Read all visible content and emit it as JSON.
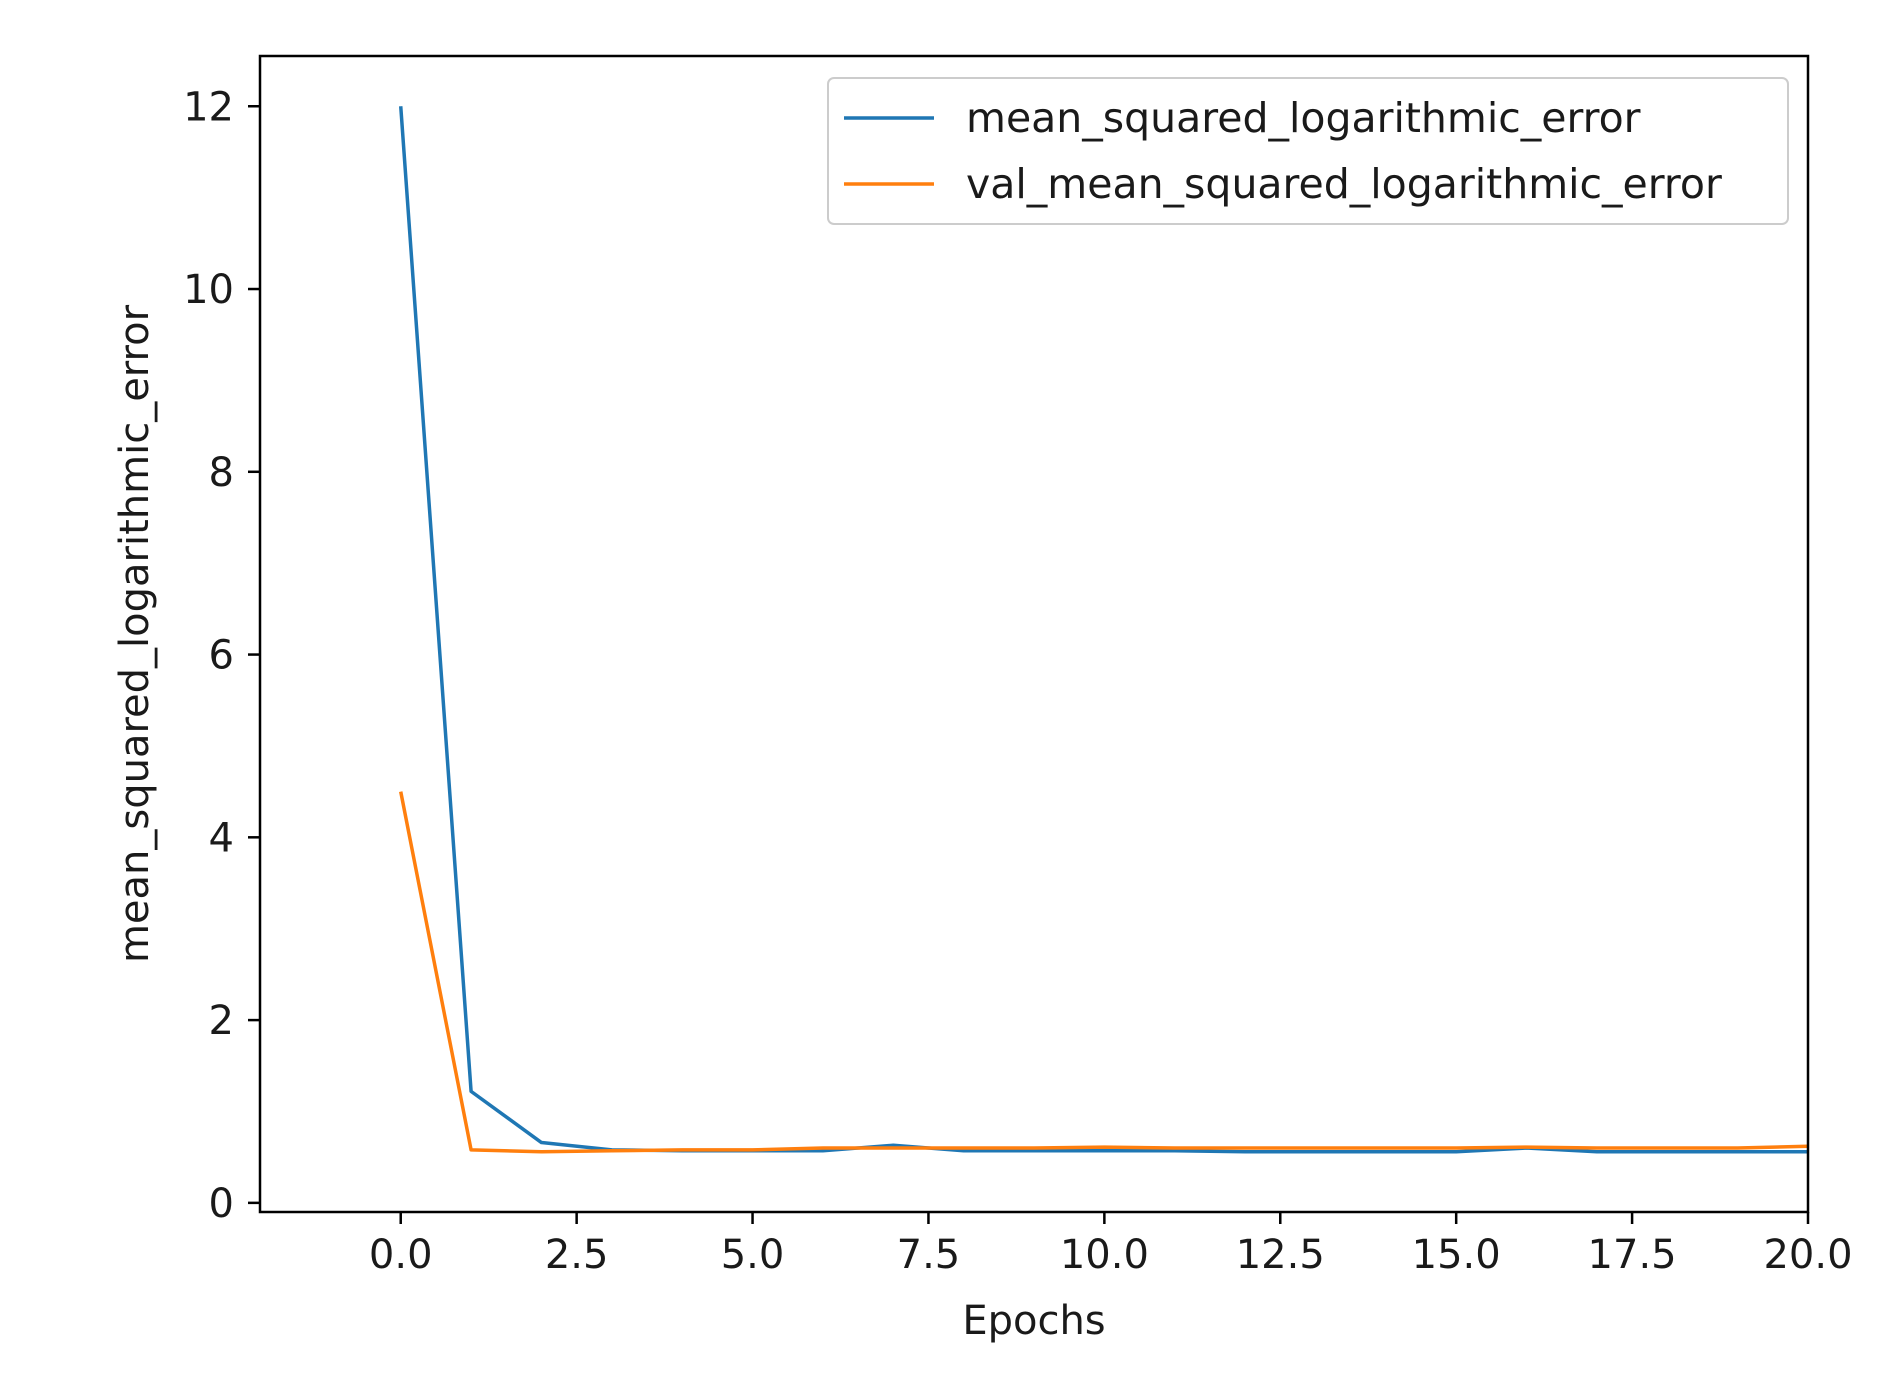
{
  "chart_data": {
    "type": "line",
    "title": "",
    "xlabel": "Epochs",
    "ylabel": "mean_squared_logarithmic_error",
    "xlim": [
      -2,
      20
    ],
    "ylim": [
      -0.1,
      12.55
    ],
    "x_ticks": [
      0.0,
      2.5,
      5.0,
      7.5,
      10.0,
      12.5,
      15.0,
      17.5,
      20.0
    ],
    "x_tick_labels": [
      "0.0",
      "2.5",
      "5.0",
      "7.5",
      "10.0",
      "12.5",
      "15.0",
      "17.5",
      "20.0"
    ],
    "y_ticks": [
      0,
      2,
      4,
      6,
      8,
      10,
      12
    ],
    "y_tick_labels": [
      "0",
      "2",
      "4",
      "6",
      "8",
      "10",
      "12"
    ],
    "grid": false,
    "legend_position": "top-right",
    "x": [
      0,
      1,
      2,
      3,
      4,
      5,
      6,
      7,
      8,
      9,
      10,
      11,
      12,
      13,
      14,
      15,
      16,
      17,
      18,
      19,
      20
    ],
    "series": [
      {
        "name": "mean_squared_logarithmic_error",
        "color": "#1f77b4",
        "values": [
          12.0,
          1.22,
          0.66,
          0.58,
          0.57,
          0.57,
          0.57,
          0.63,
          0.57,
          0.57,
          0.57,
          0.57,
          0.56,
          0.56,
          0.56,
          0.56,
          0.6,
          0.56,
          0.56,
          0.56,
          0.56
        ]
      },
      {
        "name": "val_mean_squared_logarithmic_error",
        "color": "#ff7f0e",
        "values": [
          4.5,
          0.58,
          0.56,
          0.57,
          0.58,
          0.58,
          0.6,
          0.6,
          0.6,
          0.6,
          0.61,
          0.6,
          0.6,
          0.6,
          0.6,
          0.6,
          0.61,
          0.6,
          0.6,
          0.6,
          0.62
        ]
      }
    ]
  }
}
